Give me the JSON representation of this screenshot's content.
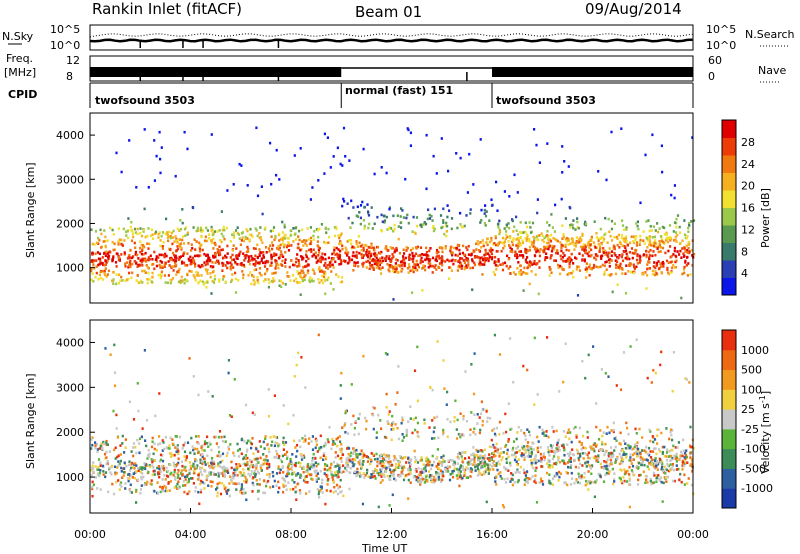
{
  "header": {
    "station": "Rankin Inlet (fitACF)",
    "beam": "Beam 01",
    "date": "09/Aug/2014"
  },
  "side_labels": {
    "nsky": "N.Sky",
    "freq_top": "Freq.",
    "freq_unit": "[MHz]",
    "cpid": "CPID",
    "nsearch": "N.Search",
    "nave": "Nave"
  },
  "chart_data": [
    {
      "type": "line",
      "name": "noise",
      "y_ticks_left": [
        "10^5",
        "10^0"
      ],
      "y_ticks_right": [
        "10^5",
        "10^0"
      ],
      "series": [
        {
          "name": "N.Sky",
          "style": "solid"
        },
        {
          "name": "N.Search",
          "style": "dotted"
        }
      ]
    },
    {
      "type": "line",
      "name": "frequency",
      "y_ticks_left": [
        "12",
        "8"
      ],
      "y_ticks_right": [
        "60",
        "0"
      ],
      "y_label": "[MHz]"
    },
    {
      "type": "table",
      "name": "cpid",
      "segments": [
        {
          "label": "twofsound 3503",
          "start_h": 0,
          "end_h": 10
        },
        {
          "label": "normal (fast) 151",
          "start_h": 10,
          "end_h": 16
        },
        {
          "label": "twofsound 3503",
          "start_h": 16,
          "end_h": 24
        }
      ]
    },
    {
      "type": "heatmap",
      "name": "power",
      "ylabel": "Slant Range [km]",
      "xlim": [
        0,
        24
      ],
      "ylim": [
        200,
        4500
      ],
      "y_ticks": [
        1000,
        2000,
        3000,
        4000
      ],
      "colorbar": {
        "label": "Power [dB]",
        "ticks": [
          "28",
          "24",
          "20",
          "16",
          "12",
          "8",
          "4"
        ],
        "colors": [
          "#0b16e8",
          "#2a3fb3",
          "#3a7a6a",
          "#5a9a50",
          "#9ac84a",
          "#f0e030",
          "#f5b020",
          "#f07a10",
          "#ee3c08",
          "#e00000"
        ]
      }
    },
    {
      "type": "heatmap",
      "name": "velocity",
      "ylabel": "Slant Range [km]",
      "xlabel": "Time UT",
      "xlim": [
        0,
        24
      ],
      "ylim": [
        200,
        4500
      ],
      "y_ticks": [
        1000,
        2000,
        3000,
        4000
      ],
      "x_ticks": [
        "00:00",
        "04:00",
        "08:00",
        "12:00",
        "16:00",
        "20:00",
        "00:00"
      ],
      "colorbar": {
        "label": "Velocity [m s^-1]",
        "ticks": [
          "1000",
          "500",
          "100",
          "25",
          "-25",
          "-100",
          "-500",
          "-1000"
        ],
        "colors": [
          "#1a3aa8",
          "#2e5fa0",
          "#3c8c58",
          "#5ab43a",
          "#c8c8c8",
          "#f0d040",
          "#f29a20",
          "#ee6a12",
          "#e83010"
        ]
      }
    }
  ]
}
